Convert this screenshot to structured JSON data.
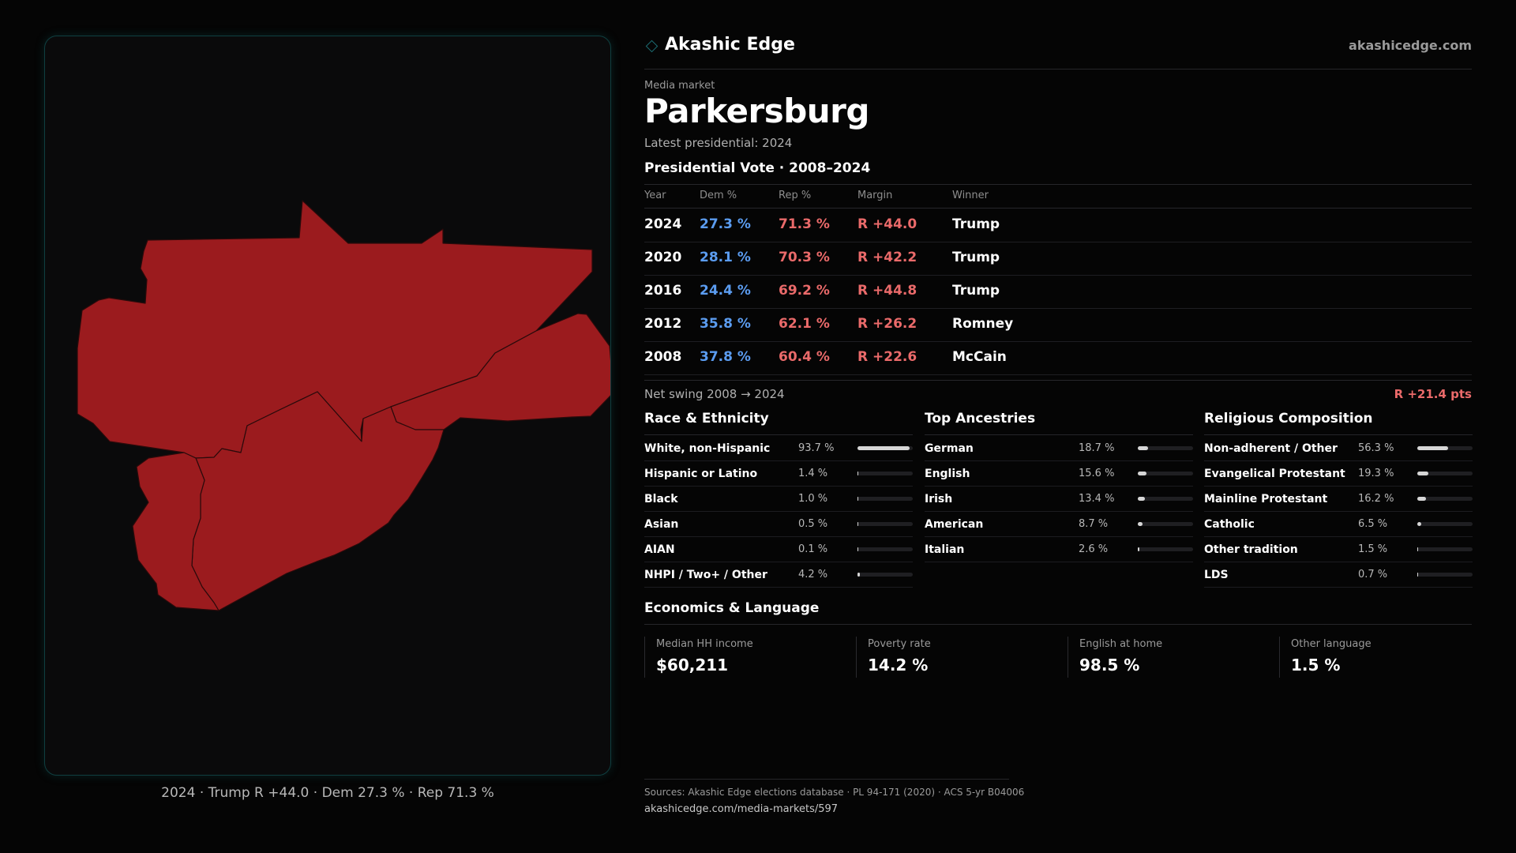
{
  "brand": {
    "name": "Akashic Edge",
    "url": "akashicedge.com"
  },
  "market": {
    "kicker": "Media market",
    "name": "Parkersburg",
    "latest": "Latest presidential: 2024"
  },
  "vote": {
    "title": "Presidential Vote · 2008–2024",
    "headers": [
      "Year",
      "Dem %",
      "Rep %",
      "Margin",
      "Winner"
    ],
    "rows": [
      {
        "year": "2024",
        "dem": "27.3 %",
        "rep": "71.3 %",
        "margin": "R +44.0",
        "winner": "Trump"
      },
      {
        "year": "2020",
        "dem": "28.1 %",
        "rep": "70.3 %",
        "margin": "R +42.2",
        "winner": "Trump"
      },
      {
        "year": "2016",
        "dem": "24.4 %",
        "rep": "69.2 %",
        "margin": "R +44.8",
        "winner": "Trump"
      },
      {
        "year": "2012",
        "dem": "35.8 %",
        "rep": "62.1 %",
        "margin": "R +26.2",
        "winner": "Romney"
      },
      {
        "year": "2008",
        "dem": "37.8 %",
        "rep": "60.4 %",
        "margin": "R +22.6",
        "winner": "McCain"
      }
    ],
    "swing_label": "Net swing 2008 → 2024",
    "swing_value": "R +21.4 pts"
  },
  "demographics": {
    "race": {
      "title": "Race & Ethnicity",
      "items": [
        {
          "label": "White, non-Hispanic",
          "value": "93.7 %",
          "pct": 93.7
        },
        {
          "label": "Hispanic or Latino",
          "value": "1.4 %",
          "pct": 1.4
        },
        {
          "label": "Black",
          "value": "1.0 %",
          "pct": 1.0
        },
        {
          "label": "Asian",
          "value": "0.5 %",
          "pct": 0.5
        },
        {
          "label": "AIAN",
          "value": "0.1 %",
          "pct": 0.1
        },
        {
          "label": "NHPI / Two+ / Other",
          "value": "4.2 %",
          "pct": 4.2
        }
      ]
    },
    "ancestry": {
      "title": "Top Ancestries",
      "items": [
        {
          "label": "German",
          "value": "18.7 %",
          "pct": 18.7
        },
        {
          "label": "English",
          "value": "15.6 %",
          "pct": 15.6
        },
        {
          "label": "Irish",
          "value": "13.4 %",
          "pct": 13.4
        },
        {
          "label": "American",
          "value": "8.7 %",
          "pct": 8.7
        },
        {
          "label": "Italian",
          "value": "2.6 %",
          "pct": 2.6
        }
      ]
    },
    "religion": {
      "title": "Religious Composition",
      "items": [
        {
          "label": "Non-adherent / Other",
          "value": "56.3 %",
          "pct": 56.3
        },
        {
          "label": "Evangelical Protestant",
          "value": "19.3 %",
          "pct": 19.3
        },
        {
          "label": "Mainline Protestant",
          "value": "16.2 %",
          "pct": 16.2
        },
        {
          "label": "Catholic",
          "value": "6.5 %",
          "pct": 6.5
        },
        {
          "label": "Other tradition",
          "value": "1.5 %",
          "pct": 1.5
        },
        {
          "label": "LDS",
          "value": "0.7 %",
          "pct": 0.7
        }
      ]
    }
  },
  "economics": {
    "title": "Economics & Language",
    "items": [
      {
        "label": "Median HH income",
        "value": "$60,211"
      },
      {
        "label": "Poverty rate",
        "value": "14.2 %"
      },
      {
        "label": "English at home",
        "value": "98.5 %"
      },
      {
        "label": "Other language",
        "value": "1.5 %"
      }
    ]
  },
  "map": {
    "caption": "2024 · Trump R +44.0 · Dem 27.3 % · Rep 71.3 %",
    "fill_color": "#9b1b1e",
    "border_color": "#2a0a0b"
  },
  "footer": {
    "sources": "Sources: Akashic Edge elections database · PL 94-171 (2020) · ACS 5-yr B04006",
    "url": "akashicedge.com/media-markets/597"
  },
  "colors": {
    "dem": "#5b9cf0",
    "rep": "#ea6a6a",
    "accent": "#1d6e74",
    "bar": "#d6d6d6"
  }
}
